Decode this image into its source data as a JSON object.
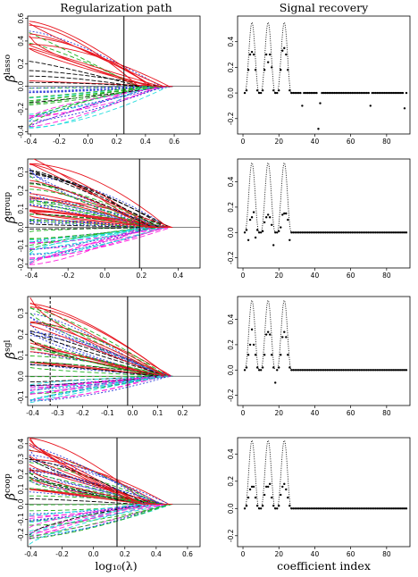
{
  "titles": {
    "left": "Regularization path",
    "right": "Signal recovery"
  },
  "xlabels": {
    "left": "log₁₀(λ)",
    "right": "coefficient index"
  },
  "colors": {
    "red": "#e8141e",
    "green": "#20b020",
    "blue": "#2c3ad8",
    "black": "#000000",
    "magenta": "#ff22dd",
    "cyan": "#22dddd",
    "grey": "#888888"
  },
  "chart_data": [
    {
      "type": "line",
      "panel": "path",
      "row": 0,
      "ylabel_base": "β̂",
      "ylabel_sup": "lasso",
      "x_ticks": [
        "-0.4",
        "-0.2",
        "0.0",
        "0.2",
        "0.4",
        "0.6"
      ],
      "y_ticks": [
        "-0.4",
        "-0.2",
        "0.0",
        "0.2",
        "0.4",
        "0.6"
      ],
      "xlim": [
        -0.42,
        0.78
      ],
      "ylim": [
        -0.42,
        0.62
      ],
      "vline": 0.25,
      "vline_style": "solid"
    },
    {
      "type": "line",
      "panel": "path",
      "row": 1,
      "ylabel_base": "β̂",
      "ylabel_sup": "group",
      "x_ticks": [
        "-0.4",
        "-0.2",
        "0.0",
        "0.2",
        "0.4"
      ],
      "y_ticks": [
        "-0.2",
        "-0.1",
        "0.0",
        "0.1",
        "0.2",
        "0.3"
      ],
      "xlim": [
        -0.42,
        0.52
      ],
      "ylim": [
        -0.22,
        0.37
      ],
      "vline": 0.19,
      "vline_style": "solid"
    },
    {
      "type": "line",
      "panel": "path",
      "row": 2,
      "ylabel_base": "β̂",
      "ylabel_sup": "sgl",
      "x_ticks": [
        "-0.4",
        "-0.3",
        "-0.2",
        "-0.1",
        "0.0",
        "0.1",
        "0.2"
      ],
      "y_ticks": [
        "-0.1",
        "0.0",
        "0.1",
        "0.2",
        "0.3"
      ],
      "xlim": [
        -0.42,
        0.27
      ],
      "ylim": [
        -0.14,
        0.38
      ],
      "vline": -0.02,
      "vline_style": "solid",
      "vline2": -0.33,
      "vline2_style": "dashed"
    },
    {
      "type": "line",
      "panel": "path",
      "row": 3,
      "ylabel_base": "β̂",
      "ylabel_sup": "coop",
      "x_ticks": [
        "-0.4",
        "-0.2",
        "0.0",
        "0.2",
        "0.4",
        "0.6"
      ],
      "y_ticks": [
        "-0.2",
        "-0.1",
        "0.0",
        "0.1",
        "0.2",
        "0.3",
        "0.4"
      ],
      "xlim": [
        -0.42,
        0.68
      ],
      "ylim": [
        -0.28,
        0.44
      ],
      "vline": 0.15,
      "vline_style": "solid"
    },
    {
      "type": "scatter",
      "panel": "signal",
      "row": 0,
      "x_ticks": [
        "0",
        "20",
        "40",
        "60",
        "80"
      ],
      "y_ticks": [
        "-0.2",
        "0.0",
        "0.2",
        "0.4"
      ],
      "xlim": [
        -3,
        93
      ],
      "ylim": [
        -0.32,
        0.6
      ],
      "true_signal": {
        "groups": [
          [
            1,
            9
          ],
          [
            10,
            18
          ],
          [
            19,
            27
          ]
        ],
        "peak": 0.55
      },
      "estimates": [
        [
          1,
          0
        ],
        [
          2,
          0.02
        ],
        [
          3,
          0.18
        ],
        [
          4,
          0.3
        ],
        [
          5,
          0.32
        ],
        [
          6,
          0.3
        ],
        [
          7,
          0.18
        ],
        [
          8,
          0.02
        ],
        [
          9,
          0
        ],
        [
          10,
          0
        ],
        [
          11,
          0.02
        ],
        [
          12,
          0.18
        ],
        [
          13,
          0.3
        ],
        [
          14,
          0.24
        ],
        [
          15,
          0.3
        ],
        [
          16,
          0.2
        ],
        [
          17,
          0.02
        ],
        [
          18,
          0
        ],
        [
          19,
          0
        ],
        [
          20,
          0.02
        ],
        [
          21,
          0.18
        ],
        [
          22,
          0.33
        ],
        [
          23,
          0.35
        ],
        [
          24,
          0.3
        ],
        [
          25,
          0.18
        ],
        [
          26,
          0.02
        ],
        [
          27,
          0
        ],
        [
          33,
          -0.1
        ],
        [
          42,
          -0.28
        ],
        [
          43,
          -0.08
        ],
        [
          71,
          -0.1
        ],
        [
          90,
          -0.12
        ]
      ],
      "zero_dots_to": 91
    },
    {
      "type": "scatter",
      "panel": "signal",
      "row": 1,
      "x_ticks": [
        "0",
        "20",
        "40",
        "60",
        "80"
      ],
      "y_ticks": [
        "-0.2",
        "0.0",
        "0.2",
        "0.4"
      ],
      "xlim": [
        -3,
        93
      ],
      "ylim": [
        -0.28,
        0.58
      ],
      "true_signal": {
        "groups": [
          [
            1,
            9
          ],
          [
            10,
            18
          ],
          [
            19,
            27
          ]
        ],
        "peak": 0.55
      },
      "estimates": [
        [
          1,
          0
        ],
        [
          2,
          0.02
        ],
        [
          3,
          -0.06
        ],
        [
          4,
          0.1
        ],
        [
          5,
          0.12
        ],
        [
          6,
          0.16
        ],
        [
          7,
          -0.04
        ],
        [
          8,
          0.02
        ],
        [
          9,
          0
        ],
        [
          10,
          0
        ],
        [
          11,
          0.01
        ],
        [
          12,
          0.08
        ],
        [
          13,
          0.12
        ],
        [
          14,
          0.14
        ],
        [
          15,
          0.12
        ],
        [
          16,
          0.06
        ],
        [
          17,
          -0.1
        ],
        [
          18,
          0
        ],
        [
          19,
          0
        ],
        [
          20,
          0.01
        ],
        [
          21,
          0.04
        ],
        [
          22,
          0.14
        ],
        [
          23,
          0.15
        ],
        [
          24,
          0.15
        ],
        [
          25,
          0.1
        ],
        [
          26,
          -0.06
        ],
        [
          27,
          0
        ]
      ],
      "zero_dots_to": 91
    },
    {
      "type": "scatter",
      "panel": "signal",
      "row": 2,
      "x_ticks": [
        "0",
        "20",
        "40",
        "60",
        "80"
      ],
      "y_ticks": [
        "-0.2",
        "0.0",
        "0.2",
        "0.4"
      ],
      "xlim": [
        -3,
        93
      ],
      "ylim": [
        -0.28,
        0.58
      ],
      "true_signal": {
        "groups": [
          [
            1,
            9
          ],
          [
            10,
            18
          ],
          [
            19,
            27
          ]
        ],
        "peak": 0.55
      },
      "estimates": [
        [
          1,
          0
        ],
        [
          2,
          0.02
        ],
        [
          3,
          0.12
        ],
        [
          4,
          0.2
        ],
        [
          5,
          0.32
        ],
        [
          6,
          0.2
        ],
        [
          7,
          0.12
        ],
        [
          8,
          0.02
        ],
        [
          9,
          0
        ],
        [
          10,
          0
        ],
        [
          11,
          0.02
        ],
        [
          12,
          0.12
        ],
        [
          13,
          0.28
        ],
        [
          14,
          0.3
        ],
        [
          15,
          0.28
        ],
        [
          16,
          0.12
        ],
        [
          17,
          0.02
        ],
        [
          18,
          -0.1
        ],
        [
          19,
          0
        ],
        [
          20,
          0.02
        ],
        [
          21,
          0.12
        ],
        [
          22,
          0.26
        ],
        [
          23,
          0.3
        ],
        [
          24,
          0.26
        ],
        [
          25,
          0.12
        ],
        [
          26,
          0.02
        ],
        [
          27,
          0
        ]
      ],
      "zero_dots_to": 91
    },
    {
      "type": "scatter",
      "panel": "signal",
      "row": 3,
      "x_ticks": [
        "0",
        "20",
        "40",
        "60",
        "80"
      ],
      "y_ticks": [
        "-0.2",
        "0.0",
        "0.2",
        "0.4"
      ],
      "xlim": [
        -3,
        93
      ],
      "ylim": [
        -0.28,
        0.52
      ],
      "true_signal": {
        "groups": [
          [
            1,
            9
          ],
          [
            10,
            18
          ],
          [
            19,
            27
          ]
        ],
        "peak": 0.5
      },
      "estimates": [
        [
          1,
          0
        ],
        [
          2,
          0.02
        ],
        [
          3,
          0.08
        ],
        [
          4,
          0.14
        ],
        [
          5,
          0.16
        ],
        [
          6,
          0.16
        ],
        [
          7,
          0.08
        ],
        [
          8,
          0.02
        ],
        [
          9,
          0
        ],
        [
          10,
          0
        ],
        [
          11,
          0.02
        ],
        [
          12,
          0.1
        ],
        [
          13,
          0.16
        ],
        [
          14,
          0.16
        ],
        [
          15,
          0.18
        ],
        [
          16,
          0.08
        ],
        [
          17,
          0.02
        ],
        [
          18,
          0
        ],
        [
          19,
          0
        ],
        [
          20,
          0.02
        ],
        [
          21,
          0.1
        ],
        [
          22,
          0.16
        ],
        [
          23,
          0.18
        ],
        [
          24,
          0.14
        ],
        [
          25,
          0.08
        ],
        [
          26,
          0.02
        ],
        [
          27,
          0
        ]
      ],
      "zero_dots_to": 91
    }
  ]
}
